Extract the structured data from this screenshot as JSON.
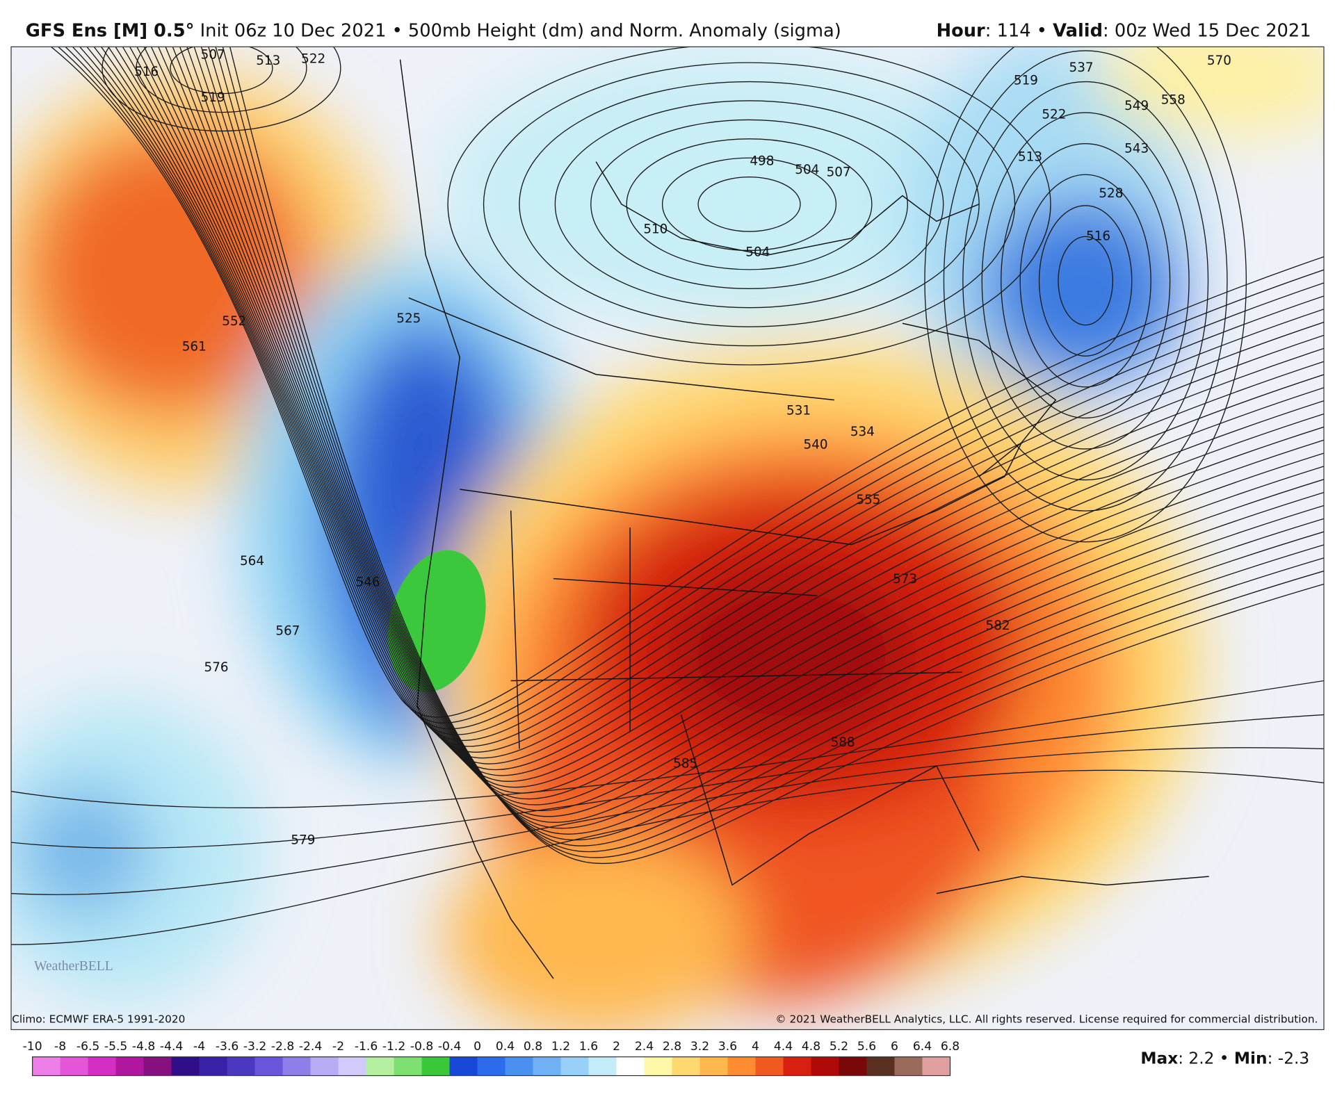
{
  "header": {
    "left_parts": [
      {
        "text": "GFS Ens [M] 0.5°",
        "bold": true
      },
      {
        "text": " Init 06z 10 Dec 2021 • 500mb Height (dm) and Norm. Anomaly (sigma)",
        "bold": false
      }
    ],
    "right_parts": [
      {
        "text": "Hour",
        "bold": true
      },
      {
        "text": ": 114 • ",
        "bold": false
      },
      {
        "text": "Valid",
        "bold": true
      },
      {
        "text": ": 00z Wed 15 Dec 2021",
        "bold": false
      }
    ]
  },
  "map": {
    "contour_labels": [
      "516",
      "507",
      "513",
      "522",
      "519",
      "561",
      "552",
      "525",
      "564",
      "546",
      "567",
      "576",
      "579",
      "498",
      "504",
      "507",
      "510",
      "504",
      "519",
      "537",
      "549",
      "558",
      "570",
      "543",
      "522",
      "513",
      "528",
      "516",
      "531",
      "540",
      "534",
      "555",
      "573",
      "582",
      "585",
      "588"
    ],
    "logo": "WeatherBELL",
    "climo": "Climo: ECMWF ERA-5 1991-2020",
    "copyright": "© 2021 WeatherBELL Analytics, LLC. All rights reserved. License required for commercial distribution."
  },
  "colorbar": {
    "labels": [
      -10,
      -8,
      -6.5,
      -5.5,
      -4.8,
      -4.4,
      -4,
      -3.6,
      -3.2,
      -2.8,
      -2.4,
      -2,
      -1.6,
      -1.2,
      -0.8,
      -0.4,
      0,
      0.4,
      0.8,
      1.2,
      1.6,
      2,
      2.4,
      2.8,
      3.2,
      3.6,
      4,
      4.4,
      4.8,
      5.2,
      5.6,
      6,
      6.4,
      6.8
    ],
    "colors": [
      "#f07ee8",
      "#e455d8",
      "#d42ec4",
      "#b0169e",
      "#86107e",
      "#300e8a",
      "#3a22a8",
      "#4a38c0",
      "#6a56dc",
      "#8e7eea",
      "#b8acf4",
      "#d2cafa",
      "#b4f0a0",
      "#7ee070",
      "#38c838",
      "#1848d8",
      "#2c6cec",
      "#4a90f0",
      "#70b0f4",
      "#98d0f8",
      "#c4ecf8",
      "#ffffff",
      "#fff8a8",
      "#ffd870",
      "#ffb84c",
      "#ff8c30",
      "#f05a20",
      "#d82010",
      "#b00a08",
      "#7a0808",
      "#5a3020",
      "#9a6a5a",
      "#e0a0a0"
    ],
    "footer_parts": [
      {
        "text": "Max",
        "bold": true
      },
      {
        "text": ": 2.2 • ",
        "bold": false
      },
      {
        "text": "Min",
        "bold": true
      },
      {
        "text": ": -2.3",
        "bold": false
      }
    ]
  }
}
